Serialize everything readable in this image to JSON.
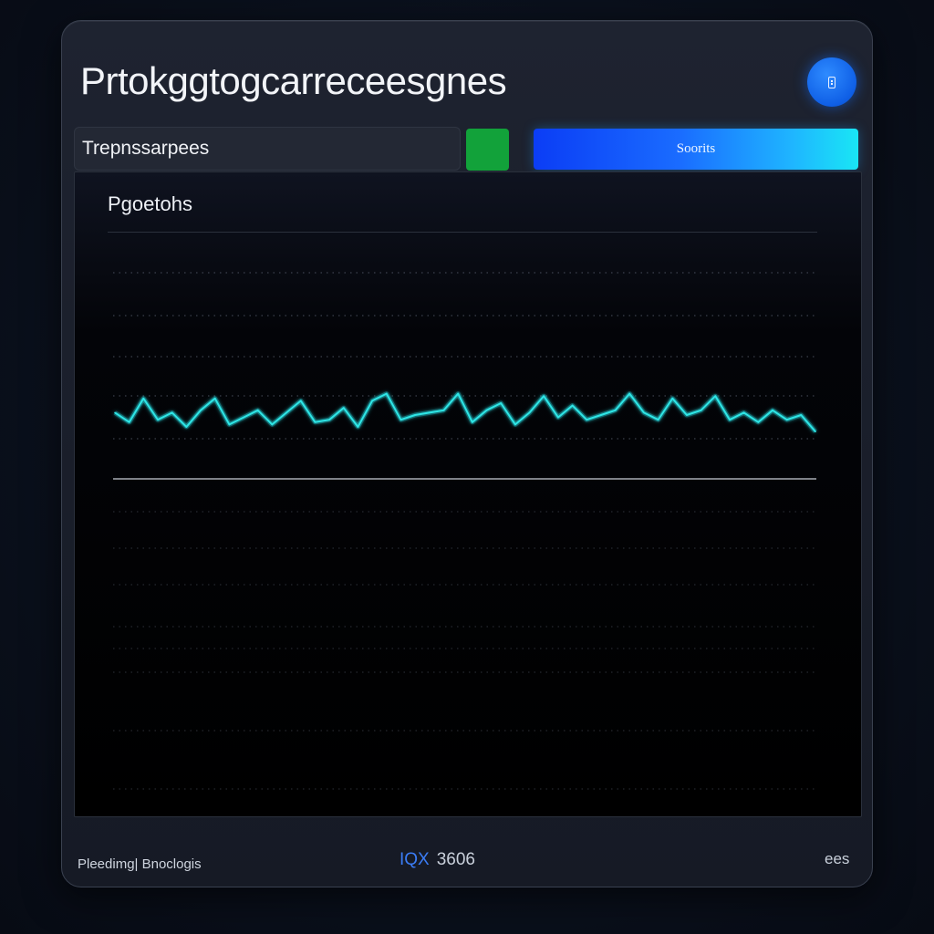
{
  "header": {
    "title": "Prtokggtogcarreceesgnes"
  },
  "fab": {
    "icon": "device-icon"
  },
  "search": {
    "value": "Trepnssarpees"
  },
  "toolbar": {
    "green_button_color": "#12a23a",
    "primary_label": "Soorits"
  },
  "panel": {
    "title": "Pgoetohs"
  },
  "chart_data": {
    "type": "line",
    "title": "",
    "xlabel": "",
    "ylabel": "",
    "color": "#2ee6e6",
    "x": [
      0,
      1,
      2,
      3,
      4,
      5,
      6,
      7,
      8,
      9,
      10,
      11,
      12,
      13,
      14,
      15,
      16,
      17,
      18,
      19,
      20,
      21,
      22,
      23,
      24,
      25,
      26,
      27,
      28,
      29,
      30,
      31,
      32,
      33,
      34,
      35,
      36,
      37,
      38,
      39,
      40,
      41,
      42,
      43,
      44,
      45,
      46,
      47,
      48,
      49
    ],
    "values": [
      0.55,
      0.35,
      0.85,
      0.4,
      0.55,
      0.25,
      0.6,
      0.85,
      0.3,
      0.45,
      0.6,
      0.3,
      0.55,
      0.8,
      0.35,
      0.4,
      0.65,
      0.25,
      0.8,
      0.95,
      0.4,
      0.5,
      0.55,
      0.6,
      0.95,
      0.35,
      0.6,
      0.75,
      0.3,
      0.55,
      0.9,
      0.45,
      0.7,
      0.4,
      0.5,
      0.6,
      0.95,
      0.55,
      0.4,
      0.85,
      0.5,
      0.6,
      0.9,
      0.4,
      0.55,
      0.35,
      0.6,
      0.4,
      0.5,
      0.15
    ],
    "ylim": [
      0,
      1
    ],
    "grid": true
  },
  "status": {
    "left_text": "Pleedimg| Bnoclogis",
    "center_accent": "IQX",
    "center_value": "3606",
    "right_text": "ees"
  }
}
